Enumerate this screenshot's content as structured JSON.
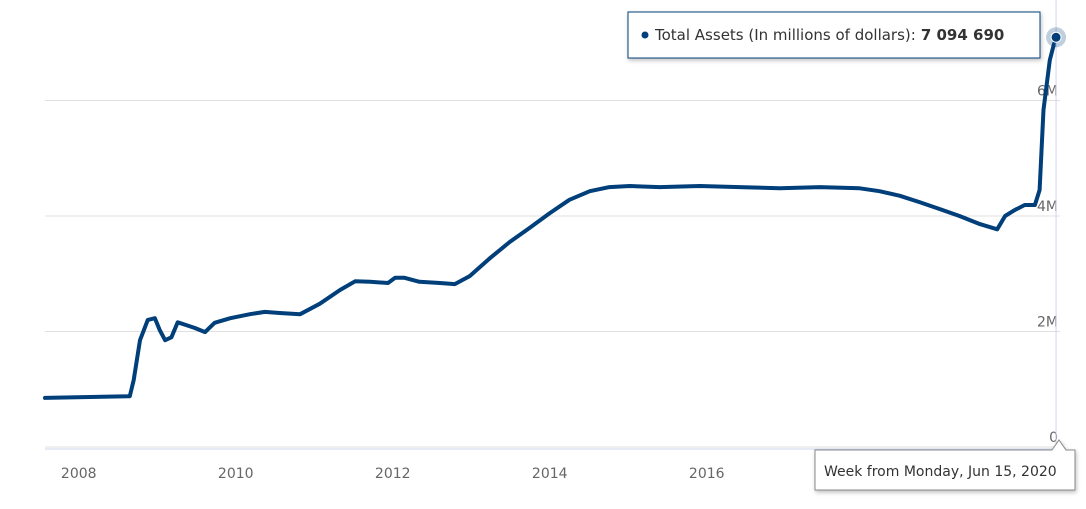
{
  "chart_data": {
    "type": "line",
    "x": [
      2007.57,
      2008.65,
      2008.7,
      2008.78,
      2008.88,
      2008.97,
      2009.03,
      2009.1,
      2009.18,
      2009.26,
      2009.37,
      2009.48,
      2009.61,
      2009.73,
      2009.93,
      2010.18,
      2010.37,
      2010.56,
      2010.82,
      2011.07,
      2011.33,
      2011.52,
      2011.71,
      2011.94,
      2012.03,
      2012.15,
      2012.34,
      2012.6,
      2012.79,
      2012.98,
      2013.23,
      2013.49,
      2013.74,
      2014.0,
      2014.25,
      2014.51,
      2014.76,
      2015.02,
      2015.4,
      2015.91,
      2016.42,
      2016.93,
      2017.44,
      2017.95,
      2018.2,
      2018.46,
      2018.71,
      2018.97,
      2019.22,
      2019.48,
      2019.7,
      2019.8,
      2019.92,
      2020.05,
      2020.18,
      2020.24,
      2020.29,
      2020.37,
      2020.42,
      2020.45
    ],
    "series": [
      {
        "color": "#003f7a",
        "values": [
          850000,
          880000,
          1160000,
          1850000,
          2200000,
          2230000,
          2030000,
          1850000,
          1900000,
          2160000,
          2110000,
          2060000,
          1990000,
          2150000,
          2230000,
          2300000,
          2340000,
          2320000,
          2300000,
          2480000,
          2720000,
          2870000,
          2860000,
          2840000,
          2930000,
          2930000,
          2860000,
          2840000,
          2820000,
          2960000,
          3260000,
          3550000,
          3790000,
          4050000,
          4280000,
          4430000,
          4500000,
          4520000,
          4500000,
          4520000,
          4500000,
          4480000,
          4500000,
          4480000,
          4430000,
          4350000,
          4240000,
          4120000,
          4000000,
          3860000,
          3770000,
          4000000,
          4100000,
          4190000,
          4190000,
          4450000,
          5840000,
          6700000,
          6960000,
          7094690
        ]
      }
    ],
    "xlim": [
      2007.57,
      2020.5
    ],
    "xticks": [
      2008,
      2010,
      2012,
      2014,
      2016
    ],
    "ylim": [
      0,
      7740000
    ],
    "yticks": [
      0,
      {
        "value": 2000000,
        "label": "2M"
      },
      {
        "value": 4000000,
        "label": "4M"
      },
      {
        "value": 6000000,
        "label": "6M"
      }
    ],
    "grid": true,
    "tooltip": {
      "label": "Total Assets (In millions of dollars):",
      "value_label": "7 094 690"
    },
    "x_tooltip": "Week from Monday, Jun 15, 2020"
  }
}
